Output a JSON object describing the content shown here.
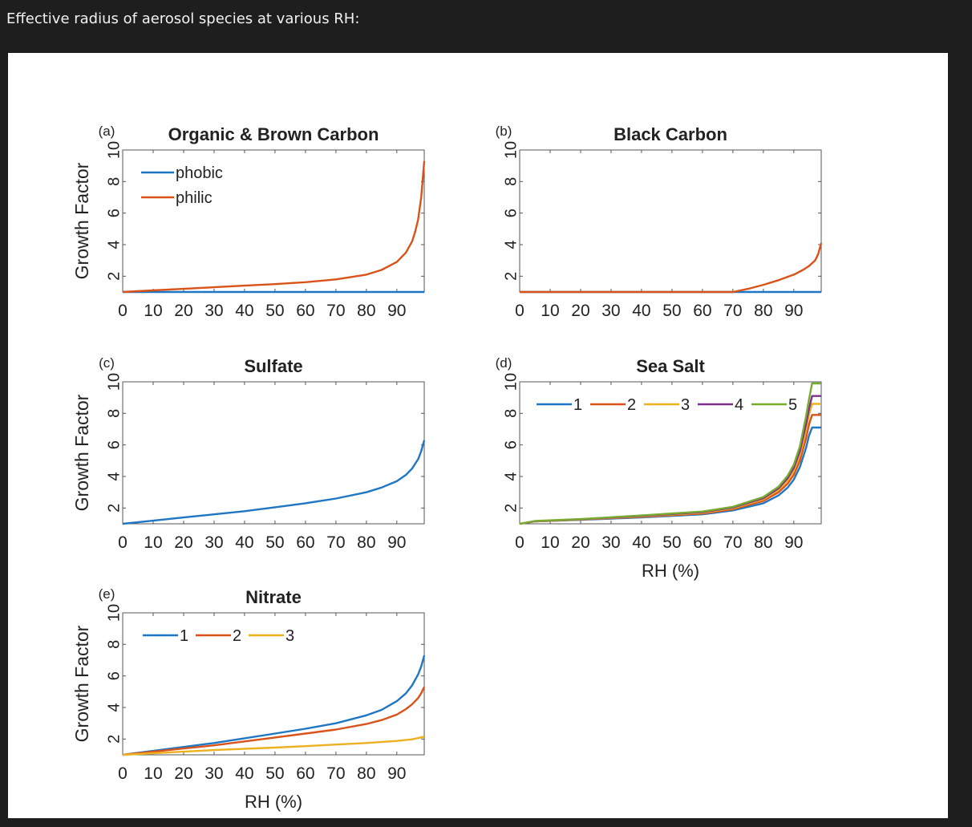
{
  "header": {
    "title": "Effective radius of aerosol species at various RH:"
  },
  "colors": {
    "blue": "#1f77c4",
    "orange": "#d95319",
    "yellow": "#edb120",
    "purple": "#7e2f8e",
    "green": "#77ac30",
    "frame": "#555555",
    "text": "#222222"
  },
  "chart_data": [
    {
      "id": "a",
      "type": "line",
      "panel_label": "(a)",
      "title": "Organic & Brown Carbon",
      "ylabel": "Growth Factor",
      "xlabel": "",
      "xlim": [
        0,
        99
      ],
      "ylim": [
        1,
        10
      ],
      "xticks": [
        0,
        10,
        20,
        30,
        40,
        50,
        60,
        70,
        80,
        90
      ],
      "yticks": [
        2,
        4,
        6,
        8,
        10
      ],
      "legend": "top-left vertical",
      "series": [
        {
          "name": "phobic",
          "color": "#1f77c4",
          "x": [
            0,
            99
          ],
          "y": [
            1.0,
            1.0
          ]
        },
        {
          "name": "philic",
          "color": "#d95319",
          "x": [
            0,
            10,
            20,
            30,
            40,
            50,
            60,
            70,
            80,
            85,
            90,
            93,
            95,
            96,
            97,
            98,
            99
          ],
          "y": [
            1.0,
            1.1,
            1.2,
            1.3,
            1.4,
            1.5,
            1.62,
            1.8,
            2.1,
            2.4,
            2.9,
            3.5,
            4.2,
            4.8,
            5.6,
            7.0,
            9.3
          ]
        }
      ]
    },
    {
      "id": "b",
      "type": "line",
      "panel_label": "(b)",
      "title": "Black Carbon",
      "ylabel": "",
      "xlabel": "",
      "xlim": [
        0,
        99
      ],
      "ylim": [
        1,
        10
      ],
      "xticks": [
        0,
        10,
        20,
        30,
        40,
        50,
        60,
        70,
        80,
        90
      ],
      "yticks": [
        2,
        4,
        6,
        8,
        10
      ],
      "legend": "",
      "series": [
        {
          "name": "",
          "color": "#1f77c4",
          "x": [
            0,
            99
          ],
          "y": [
            1.0,
            1.0
          ]
        },
        {
          "name": "",
          "color": "#d95319",
          "x": [
            0,
            70,
            75,
            80,
            85,
            90,
            93,
            95,
            97,
            98,
            99
          ],
          "y": [
            1.0,
            1.0,
            1.2,
            1.45,
            1.75,
            2.1,
            2.4,
            2.65,
            3.0,
            3.4,
            4.1
          ]
        }
      ]
    },
    {
      "id": "c",
      "type": "line",
      "panel_label": "(c)",
      "title": "Sulfate",
      "ylabel": "Growth Factor",
      "xlabel": "",
      "xlim": [
        0,
        99
      ],
      "ylim": [
        1,
        10
      ],
      "xticks": [
        0,
        10,
        20,
        30,
        40,
        50,
        60,
        70,
        80,
        90
      ],
      "yticks": [
        2,
        4,
        6,
        8,
        10
      ],
      "legend": "",
      "series": [
        {
          "name": "",
          "color": "#1f77c4",
          "x": [
            0,
            10,
            20,
            30,
            40,
            50,
            60,
            70,
            80,
            85,
            90,
            93,
            95,
            97,
            98,
            99
          ],
          "y": [
            1.0,
            1.2,
            1.4,
            1.6,
            1.8,
            2.05,
            2.3,
            2.6,
            3.0,
            3.3,
            3.7,
            4.1,
            4.5,
            5.1,
            5.6,
            6.3
          ]
        }
      ]
    },
    {
      "id": "d",
      "type": "line",
      "panel_label": "(d)",
      "title": "Sea Salt",
      "ylabel": "",
      "xlabel": "RH (%)",
      "xlim": [
        0,
        99
      ],
      "ylim": [
        1,
        10
      ],
      "xticks": [
        0,
        10,
        20,
        30,
        40,
        50,
        60,
        70,
        80,
        90
      ],
      "yticks": [
        2,
        4,
        6,
        8,
        10
      ],
      "legend": "top horizontal",
      "series": [
        {
          "name": "1",
          "color": "#1f77c4",
          "x": [
            0,
            5,
            20,
            40,
            60,
            70,
            80,
            85,
            88,
            90,
            92,
            94,
            95,
            96,
            99
          ],
          "y": [
            1.0,
            1.15,
            1.25,
            1.4,
            1.6,
            1.85,
            2.3,
            2.8,
            3.3,
            3.8,
            4.6,
            5.8,
            6.6,
            7.1,
            7.1
          ]
        },
        {
          "name": "2",
          "color": "#d95319",
          "x": [
            0,
            5,
            20,
            40,
            60,
            70,
            80,
            85,
            88,
            90,
            92,
            94,
            95,
            96,
            99
          ],
          "y": [
            1.0,
            1.15,
            1.27,
            1.44,
            1.65,
            1.92,
            2.45,
            3.0,
            3.55,
            4.1,
            5.0,
            6.4,
            7.3,
            7.9,
            7.9
          ]
        },
        {
          "name": "3",
          "color": "#edb120",
          "x": [
            0,
            5,
            20,
            40,
            60,
            70,
            80,
            85,
            88,
            90,
            92,
            94,
            95,
            96,
            99
          ],
          "y": [
            1.0,
            1.16,
            1.28,
            1.47,
            1.7,
            1.98,
            2.55,
            3.15,
            3.75,
            4.35,
            5.35,
            6.9,
            7.9,
            8.6,
            8.6
          ]
        },
        {
          "name": "4",
          "color": "#7e2f8e",
          "x": [
            0,
            5,
            20,
            40,
            60,
            70,
            80,
            85,
            88,
            90,
            92,
            94,
            95,
            96,
            99
          ],
          "y": [
            1.0,
            1.17,
            1.29,
            1.5,
            1.74,
            2.03,
            2.62,
            3.25,
            3.9,
            4.55,
            5.6,
            7.3,
            8.3,
            9.1,
            9.1
          ]
        },
        {
          "name": "5",
          "color": "#77ac30",
          "x": [
            0,
            5,
            20,
            40,
            60,
            70,
            80,
            85,
            88,
            90,
            92,
            94,
            95,
            96,
            99
          ],
          "y": [
            1.0,
            1.18,
            1.3,
            1.53,
            1.78,
            2.08,
            2.7,
            3.35,
            4.05,
            4.75,
            5.9,
            7.8,
            8.9,
            9.9,
            9.9
          ]
        }
      ]
    },
    {
      "id": "e",
      "type": "line",
      "panel_label": "(e)",
      "title": "Nitrate",
      "ylabel": "Growth Factor",
      "xlabel": "RH (%)",
      "xlim": [
        0,
        99
      ],
      "ylim": [
        1,
        10
      ],
      "xticks": [
        0,
        10,
        20,
        30,
        40,
        50,
        60,
        70,
        80,
        90
      ],
      "yticks": [
        2,
        4,
        6,
        8,
        10
      ],
      "legend": "top horizontal",
      "series": [
        {
          "name": "1",
          "color": "#1f77c4",
          "x": [
            0,
            10,
            20,
            30,
            40,
            50,
            60,
            70,
            80,
            85,
            90,
            93,
            95,
            97,
            98,
            99
          ],
          "y": [
            1.0,
            1.25,
            1.5,
            1.75,
            2.05,
            2.35,
            2.65,
            3.0,
            3.5,
            3.85,
            4.4,
            4.9,
            5.4,
            6.1,
            6.6,
            7.3
          ]
        },
        {
          "name": "2",
          "color": "#d95319",
          "x": [
            0,
            10,
            20,
            30,
            40,
            50,
            60,
            70,
            80,
            85,
            90,
            93,
            95,
            97,
            98,
            99
          ],
          "y": [
            1.0,
            1.2,
            1.4,
            1.6,
            1.85,
            2.1,
            2.35,
            2.6,
            2.95,
            3.2,
            3.55,
            3.9,
            4.2,
            4.6,
            4.9,
            5.3
          ]
        },
        {
          "name": "3",
          "color": "#edb120",
          "x": [
            0,
            10,
            20,
            30,
            40,
            50,
            60,
            70,
            80,
            90,
            95,
            99
          ],
          "y": [
            1.0,
            1.1,
            1.2,
            1.3,
            1.38,
            1.46,
            1.55,
            1.65,
            1.75,
            1.88,
            1.98,
            2.15
          ]
        }
      ]
    }
  ]
}
